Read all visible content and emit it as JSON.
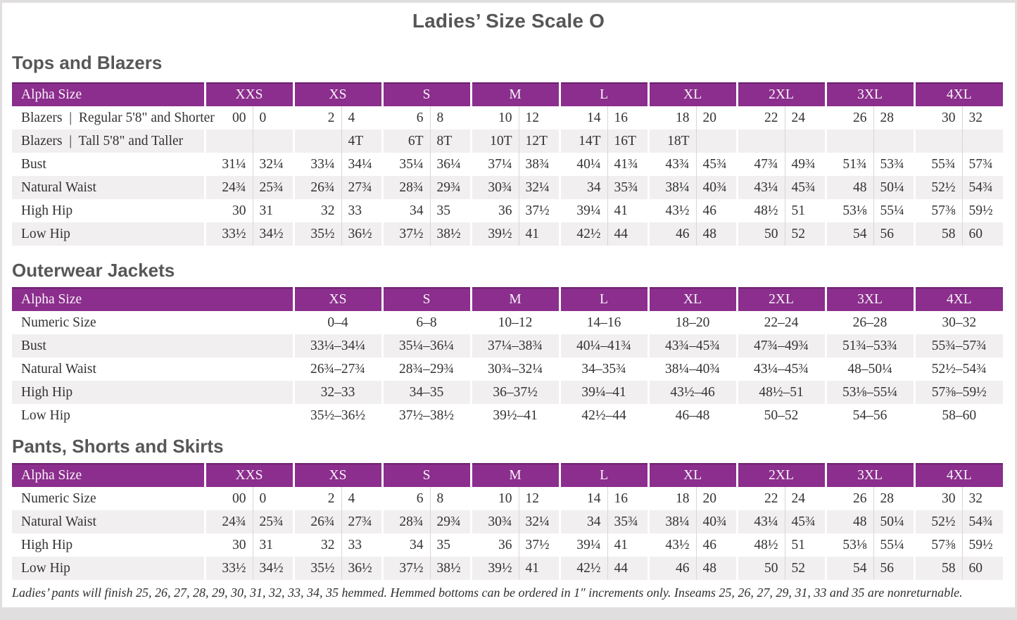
{
  "title": "Ladies’ Size Scale O",
  "colors": {
    "header_purple": "#8b2e8d",
    "header_top_accent": "#6a1f6b",
    "row_stripe": "#f1efef",
    "heading_gray": "#575757"
  },
  "sections": [
    {
      "heading": "Tops and Blazers",
      "table": {
        "type": "paired",
        "header_label": "Alpha Size",
        "sizes": [
          "XXS",
          "XS",
          "S",
          "M",
          "L",
          "XL",
          "2XL",
          "3XL",
          "4XL"
        ],
        "rows": [
          {
            "label": "Blazers  |  Regular 5'8\" and Shorter",
            "values": [
              [
                "00",
                "0"
              ],
              [
                "2",
                "4"
              ],
              [
                "6",
                "8"
              ],
              [
                "10",
                "12"
              ],
              [
                "14",
                "16"
              ],
              [
                "18",
                "20"
              ],
              [
                "22",
                "24"
              ],
              [
                "26",
                "28"
              ],
              [
                "30",
                "32"
              ]
            ]
          },
          {
            "label": "Blazers  |  Tall 5'8\" and Taller",
            "values": [
              [
                "",
                ""
              ],
              [
                "",
                "4T"
              ],
              [
                "6T",
                "8T"
              ],
              [
                "10T",
                "12T"
              ],
              [
                "14T",
                "16T"
              ],
              [
                "18T",
                ""
              ],
              [
                "",
                ""
              ],
              [
                "",
                ""
              ],
              [
                "",
                ""
              ]
            ]
          },
          {
            "label": "Bust",
            "values": [
              [
                "31¼",
                "32¼"
              ],
              [
                "33¼",
                "34¼"
              ],
              [
                "35¼",
                "36¼"
              ],
              [
                "37¼",
                "38¾"
              ],
              [
                "40¼",
                "41¾"
              ],
              [
                "43¾",
                "45¾"
              ],
              [
                "47¾",
                "49¾"
              ],
              [
                "51¾",
                "53¾"
              ],
              [
                "55¾",
                "57¾"
              ]
            ]
          },
          {
            "label": "Natural Waist",
            "values": [
              [
                "24¾",
                "25¾"
              ],
              [
                "26¾",
                "27¾"
              ],
              [
                "28¾",
                "29¾"
              ],
              [
                "30¾",
                "32¼"
              ],
              [
                "34",
                "35¾"
              ],
              [
                "38¼",
                "40¾"
              ],
              [
                "43¼",
                "45¾"
              ],
              [
                "48",
                "50¼"
              ],
              [
                "52½",
                "54¾"
              ]
            ]
          },
          {
            "label": "High Hip",
            "values": [
              [
                "30",
                "31"
              ],
              [
                "32",
                "33"
              ],
              [
                "34",
                "35"
              ],
              [
                "36",
                "37½"
              ],
              [
                "39¼",
                "41"
              ],
              [
                "43½",
                "46"
              ],
              [
                "48½",
                "51"
              ],
              [
                "53⅛",
                "55¼"
              ],
              [
                "57⅜",
                "59½"
              ]
            ]
          },
          {
            "label": "Low Hip",
            "values": [
              [
                "33½",
                "34½"
              ],
              [
                "35½",
                "36½"
              ],
              [
                "37½",
                "38½"
              ],
              [
                "39½",
                "41"
              ],
              [
                "42½",
                "44"
              ],
              [
                "46",
                "48"
              ],
              [
                "50",
                "52"
              ],
              [
                "54",
                "56"
              ],
              [
                "58",
                "60"
              ]
            ]
          }
        ]
      }
    },
    {
      "heading": "Outerwear Jackets",
      "table": {
        "type": "single",
        "header_label": "Alpha Size",
        "sizes": [
          "XS",
          "S",
          "M",
          "L",
          "XL",
          "2XL",
          "3XL",
          "4XL"
        ],
        "rows": [
          {
            "label": "Numeric Size",
            "values": [
              "0–4",
              "6–8",
              "10–12",
              "14–16",
              "18–20",
              "22–24",
              "26–28",
              "30–32"
            ]
          },
          {
            "label": "Bust",
            "values": [
              "33¼–34¼",
              "35¼–36¼",
              "37¼–38¾",
              "40¼–41¾",
              "43¾–45¾",
              "47¾–49¾",
              "51¾–53¾",
              "55¾–57¾"
            ]
          },
          {
            "label": "Natural Waist",
            "values": [
              "26¾–27¾",
              "28¾–29¾",
              "30¾–32¼",
              "34–35¾",
              "38¼–40¾",
              "43¼–45¾",
              "48–50¼",
              "52½–54¾"
            ]
          },
          {
            "label": "High Hip",
            "values": [
              "32–33",
              "34–35",
              "36–37½",
              "39¼–41",
              "43½–46",
              "48½–51",
              "53⅛–55¼",
              "57⅜–59½"
            ]
          },
          {
            "label": "Low Hip",
            "values": [
              "35½–36½",
              "37½–38½",
              "39½–41",
              "42½–44",
              "46–48",
              "50–52",
              "54–56",
              "58–60"
            ]
          }
        ]
      }
    },
    {
      "heading": "Pants, Shorts and Skirts",
      "table": {
        "type": "paired",
        "header_label": "Alpha Size",
        "sizes": [
          "XXS",
          "XS",
          "S",
          "M",
          "L",
          "XL",
          "2XL",
          "3XL",
          "4XL"
        ],
        "rows": [
          {
            "label": "Numeric Size",
            "values": [
              [
                "00",
                "0"
              ],
              [
                "2",
                "4"
              ],
              [
                "6",
                "8"
              ],
              [
                "10",
                "12"
              ],
              [
                "14",
                "16"
              ],
              [
                "18",
                "20"
              ],
              [
                "22",
                "24"
              ],
              [
                "26",
                "28"
              ],
              [
                "30",
                "32"
              ]
            ]
          },
          {
            "label": "Natural Waist",
            "values": [
              [
                "24¾",
                "25¾"
              ],
              [
                "26¾",
                "27¾"
              ],
              [
                "28¾",
                "29¾"
              ],
              [
                "30¾",
                "32¼"
              ],
              [
                "34",
                "35¾"
              ],
              [
                "38¼",
                "40¾"
              ],
              [
                "43¼",
                "45¾"
              ],
              [
                "48",
                "50¼"
              ],
              [
                "52½",
                "54¾"
              ]
            ]
          },
          {
            "label": "High Hip",
            "values": [
              [
                "30",
                "31"
              ],
              [
                "32",
                "33"
              ],
              [
                "34",
                "35"
              ],
              [
                "36",
                "37½"
              ],
              [
                "39¼",
                "41"
              ],
              [
                "43½",
                "46"
              ],
              [
                "48½",
                "51"
              ],
              [
                "53⅛",
                "55¼"
              ],
              [
                "57⅜",
                "59½"
              ]
            ]
          },
          {
            "label": "Low Hip",
            "values": [
              [
                "33½",
                "34½"
              ],
              [
                "35½",
                "36½"
              ],
              [
                "37½",
                "38½"
              ],
              [
                "39½",
                "41"
              ],
              [
                "42½",
                "44"
              ],
              [
                "46",
                "48"
              ],
              [
                "50",
                "52"
              ],
              [
                "54",
                "56"
              ],
              [
                "58",
                "60"
              ]
            ]
          }
        ]
      }
    }
  ],
  "footnote": "Ladies’ pants will finish 25, 26, 27, 28, 29, 30, 31, 32, 33, 34, 35 hemmed. Hemmed bottoms can be ordered in 1″ increments only. Inseams 25, 26, 27, 29, 31, 33 and 35 are nonreturnable."
}
